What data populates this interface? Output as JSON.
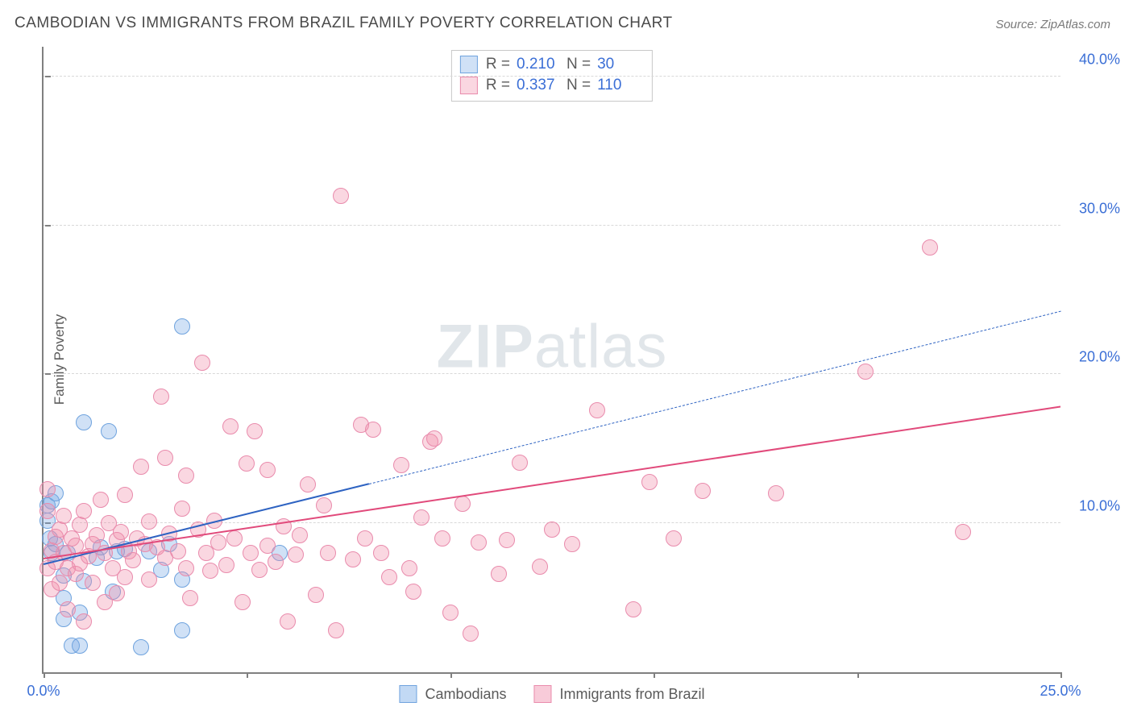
{
  "title": "CAMBODIAN VS IMMIGRANTS FROM BRAZIL FAMILY POVERTY CORRELATION CHART",
  "source": "Source: ZipAtlas.com",
  "ylabel": "Family Poverty",
  "watermark_bold": "ZIP",
  "watermark_rest": "atlas",
  "chart": {
    "type": "scatter",
    "xlim": [
      0,
      25
    ],
    "ylim": [
      0,
      42
    ],
    "yticks": [
      10,
      20,
      30,
      40
    ],
    "ytick_labels": [
      "10.0%",
      "20.0%",
      "30.0%",
      "40.0%"
    ],
    "xticks": [
      0,
      5,
      10,
      15,
      20,
      25
    ],
    "xtick_labels": [
      "0.0%",
      "",
      "",
      "",
      "",
      "25.0%"
    ],
    "background_color": "#ffffff",
    "grid_color": "#d8d8d8",
    "axis_color": "#808080",
    "tick_label_color": "#3b6fd6",
    "marker_radius": 10,
    "marker_stroke": 1.5,
    "series": [
      {
        "name": "Cambodians",
        "fill": "rgba(120,170,230,0.35)",
        "stroke": "#6fa3de",
        "R": "0.210",
        "N": "30",
        "trend": {
          "x1": 0,
          "y1": 7.2,
          "x2": 8.0,
          "y2": 12.6,
          "dash_to_x": 25,
          "dash_to_y": 24.2,
          "color": "#2e63c2",
          "width": 2.4
        },
        "points": [
          [
            0.1,
            11.2
          ],
          [
            0.1,
            10.2
          ],
          [
            0.15,
            9.0
          ],
          [
            0.2,
            11.5
          ],
          [
            0.2,
            8.0
          ],
          [
            0.3,
            8.6
          ],
          [
            0.3,
            12.0
          ],
          [
            0.5,
            3.6
          ],
          [
            0.5,
            5.0
          ],
          [
            0.5,
            6.5
          ],
          [
            0.6,
            8.0
          ],
          [
            0.7,
            1.8
          ],
          [
            0.9,
            1.8
          ],
          [
            0.9,
            4.0
          ],
          [
            1.0,
            6.1
          ],
          [
            1.0,
            16.8
          ],
          [
            1.3,
            7.7
          ],
          [
            1.4,
            8.4
          ],
          [
            1.6,
            16.2
          ],
          [
            1.7,
            5.4
          ],
          [
            1.8,
            8.1
          ],
          [
            2.0,
            8.3
          ],
          [
            2.4,
            1.7
          ],
          [
            2.6,
            8.1
          ],
          [
            2.9,
            6.9
          ],
          [
            3.1,
            8.6
          ],
          [
            3.4,
            6.2
          ],
          [
            3.4,
            23.2
          ],
          [
            3.4,
            2.8
          ],
          [
            5.8,
            8.0
          ]
        ]
      },
      {
        "name": "Immigrants from Brazil",
        "fill": "rgba(240,140,170,0.35)",
        "stroke": "#e98bac",
        "R": "0.337",
        "N": "110",
        "trend": {
          "x1": 0,
          "y1": 7.6,
          "x2": 25,
          "y2": 17.8,
          "color": "#e14a7b",
          "width": 2.6
        },
        "points": [
          [
            0.1,
            7.0
          ],
          [
            0.1,
            10.8
          ],
          [
            0.1,
            12.3
          ],
          [
            0.2,
            5.6
          ],
          [
            0.2,
            8.2
          ],
          [
            0.3,
            9.1
          ],
          [
            0.3,
            7.4
          ],
          [
            0.4,
            6.0
          ],
          [
            0.4,
            9.6
          ],
          [
            0.5,
            10.5
          ],
          [
            0.5,
            8.0
          ],
          [
            0.6,
            4.2
          ],
          [
            0.6,
            7.0
          ],
          [
            0.7,
            9.0
          ],
          [
            0.8,
            8.5
          ],
          [
            0.8,
            6.6
          ],
          [
            0.9,
            9.9
          ],
          [
            0.9,
            7.3
          ],
          [
            1.0,
            10.8
          ],
          [
            1.0,
            3.4
          ],
          [
            1.1,
            7.8
          ],
          [
            1.2,
            8.6
          ],
          [
            1.2,
            6.0
          ],
          [
            1.3,
            9.2
          ],
          [
            1.4,
            11.6
          ],
          [
            1.5,
            4.7
          ],
          [
            1.5,
            8.0
          ],
          [
            1.6,
            10.0
          ],
          [
            1.7,
            7.0
          ],
          [
            1.8,
            8.9
          ],
          [
            1.8,
            5.3
          ],
          [
            1.9,
            9.4
          ],
          [
            2.0,
            11.9
          ],
          [
            2.0,
            6.4
          ],
          [
            2.1,
            8.1
          ],
          [
            2.2,
            7.5
          ],
          [
            2.3,
            9.0
          ],
          [
            2.4,
            13.8
          ],
          [
            2.5,
            8.6
          ],
          [
            2.6,
            6.2
          ],
          [
            2.6,
            10.1
          ],
          [
            2.8,
            8.4
          ],
          [
            2.9,
            18.5
          ],
          [
            3.0,
            7.7
          ],
          [
            3.0,
            14.4
          ],
          [
            3.1,
            9.3
          ],
          [
            3.3,
            8.1
          ],
          [
            3.4,
            11.0
          ],
          [
            3.5,
            7.0
          ],
          [
            3.5,
            13.2
          ],
          [
            3.6,
            5.0
          ],
          [
            3.8,
            9.6
          ],
          [
            3.9,
            20.8
          ],
          [
            4.0,
            8.0
          ],
          [
            4.1,
            6.8
          ],
          [
            4.2,
            10.2
          ],
          [
            4.3,
            8.7
          ],
          [
            4.5,
            7.2
          ],
          [
            4.6,
            16.5
          ],
          [
            4.7,
            9.0
          ],
          [
            4.9,
            4.7
          ],
          [
            5.0,
            14.0
          ],
          [
            5.1,
            8.0
          ],
          [
            5.2,
            16.2
          ],
          [
            5.3,
            6.9
          ],
          [
            5.5,
            8.5
          ],
          [
            5.5,
            13.6
          ],
          [
            5.7,
            7.4
          ],
          [
            5.9,
            9.8
          ],
          [
            6.0,
            3.4
          ],
          [
            6.2,
            7.9
          ],
          [
            6.3,
            9.2
          ],
          [
            6.5,
            12.6
          ],
          [
            6.7,
            5.2
          ],
          [
            6.9,
            11.2
          ],
          [
            7.0,
            8.0
          ],
          [
            7.2,
            2.8
          ],
          [
            7.3,
            32.0
          ],
          [
            7.6,
            7.6
          ],
          [
            7.8,
            16.6
          ],
          [
            7.9,
            9.0
          ],
          [
            8.1,
            16.3
          ],
          [
            8.3,
            8.0
          ],
          [
            8.5,
            6.4
          ],
          [
            8.8,
            13.9
          ],
          [
            9.0,
            7.0
          ],
          [
            9.1,
            5.4
          ],
          [
            9.3,
            10.4
          ],
          [
            9.5,
            15.5
          ],
          [
            9.6,
            15.7
          ],
          [
            9.8,
            9.0
          ],
          [
            10.0,
            4.0
          ],
          [
            10.3,
            11.3
          ],
          [
            10.5,
            2.6
          ],
          [
            10.7,
            8.7
          ],
          [
            11.2,
            6.6
          ],
          [
            11.4,
            8.9
          ],
          [
            11.7,
            14.1
          ],
          [
            12.2,
            7.1
          ],
          [
            12.5,
            9.6
          ],
          [
            13.0,
            8.6
          ],
          [
            13.6,
            17.6
          ],
          [
            14.5,
            4.2
          ],
          [
            14.9,
            12.8
          ],
          [
            15.5,
            9.0
          ],
          [
            16.2,
            12.2
          ],
          [
            18.0,
            12.0
          ],
          [
            20.2,
            20.2
          ],
          [
            21.8,
            28.5
          ],
          [
            22.6,
            9.4
          ]
        ]
      }
    ],
    "legend_bottom": [
      {
        "swatch_fill": "rgba(120,170,230,0.45)",
        "swatch_stroke": "#6fa3de",
        "label": "Cambodians"
      },
      {
        "swatch_fill": "rgba(240,140,170,0.45)",
        "swatch_stroke": "#e98bac",
        "label": "Immigrants from Brazil"
      }
    ]
  }
}
